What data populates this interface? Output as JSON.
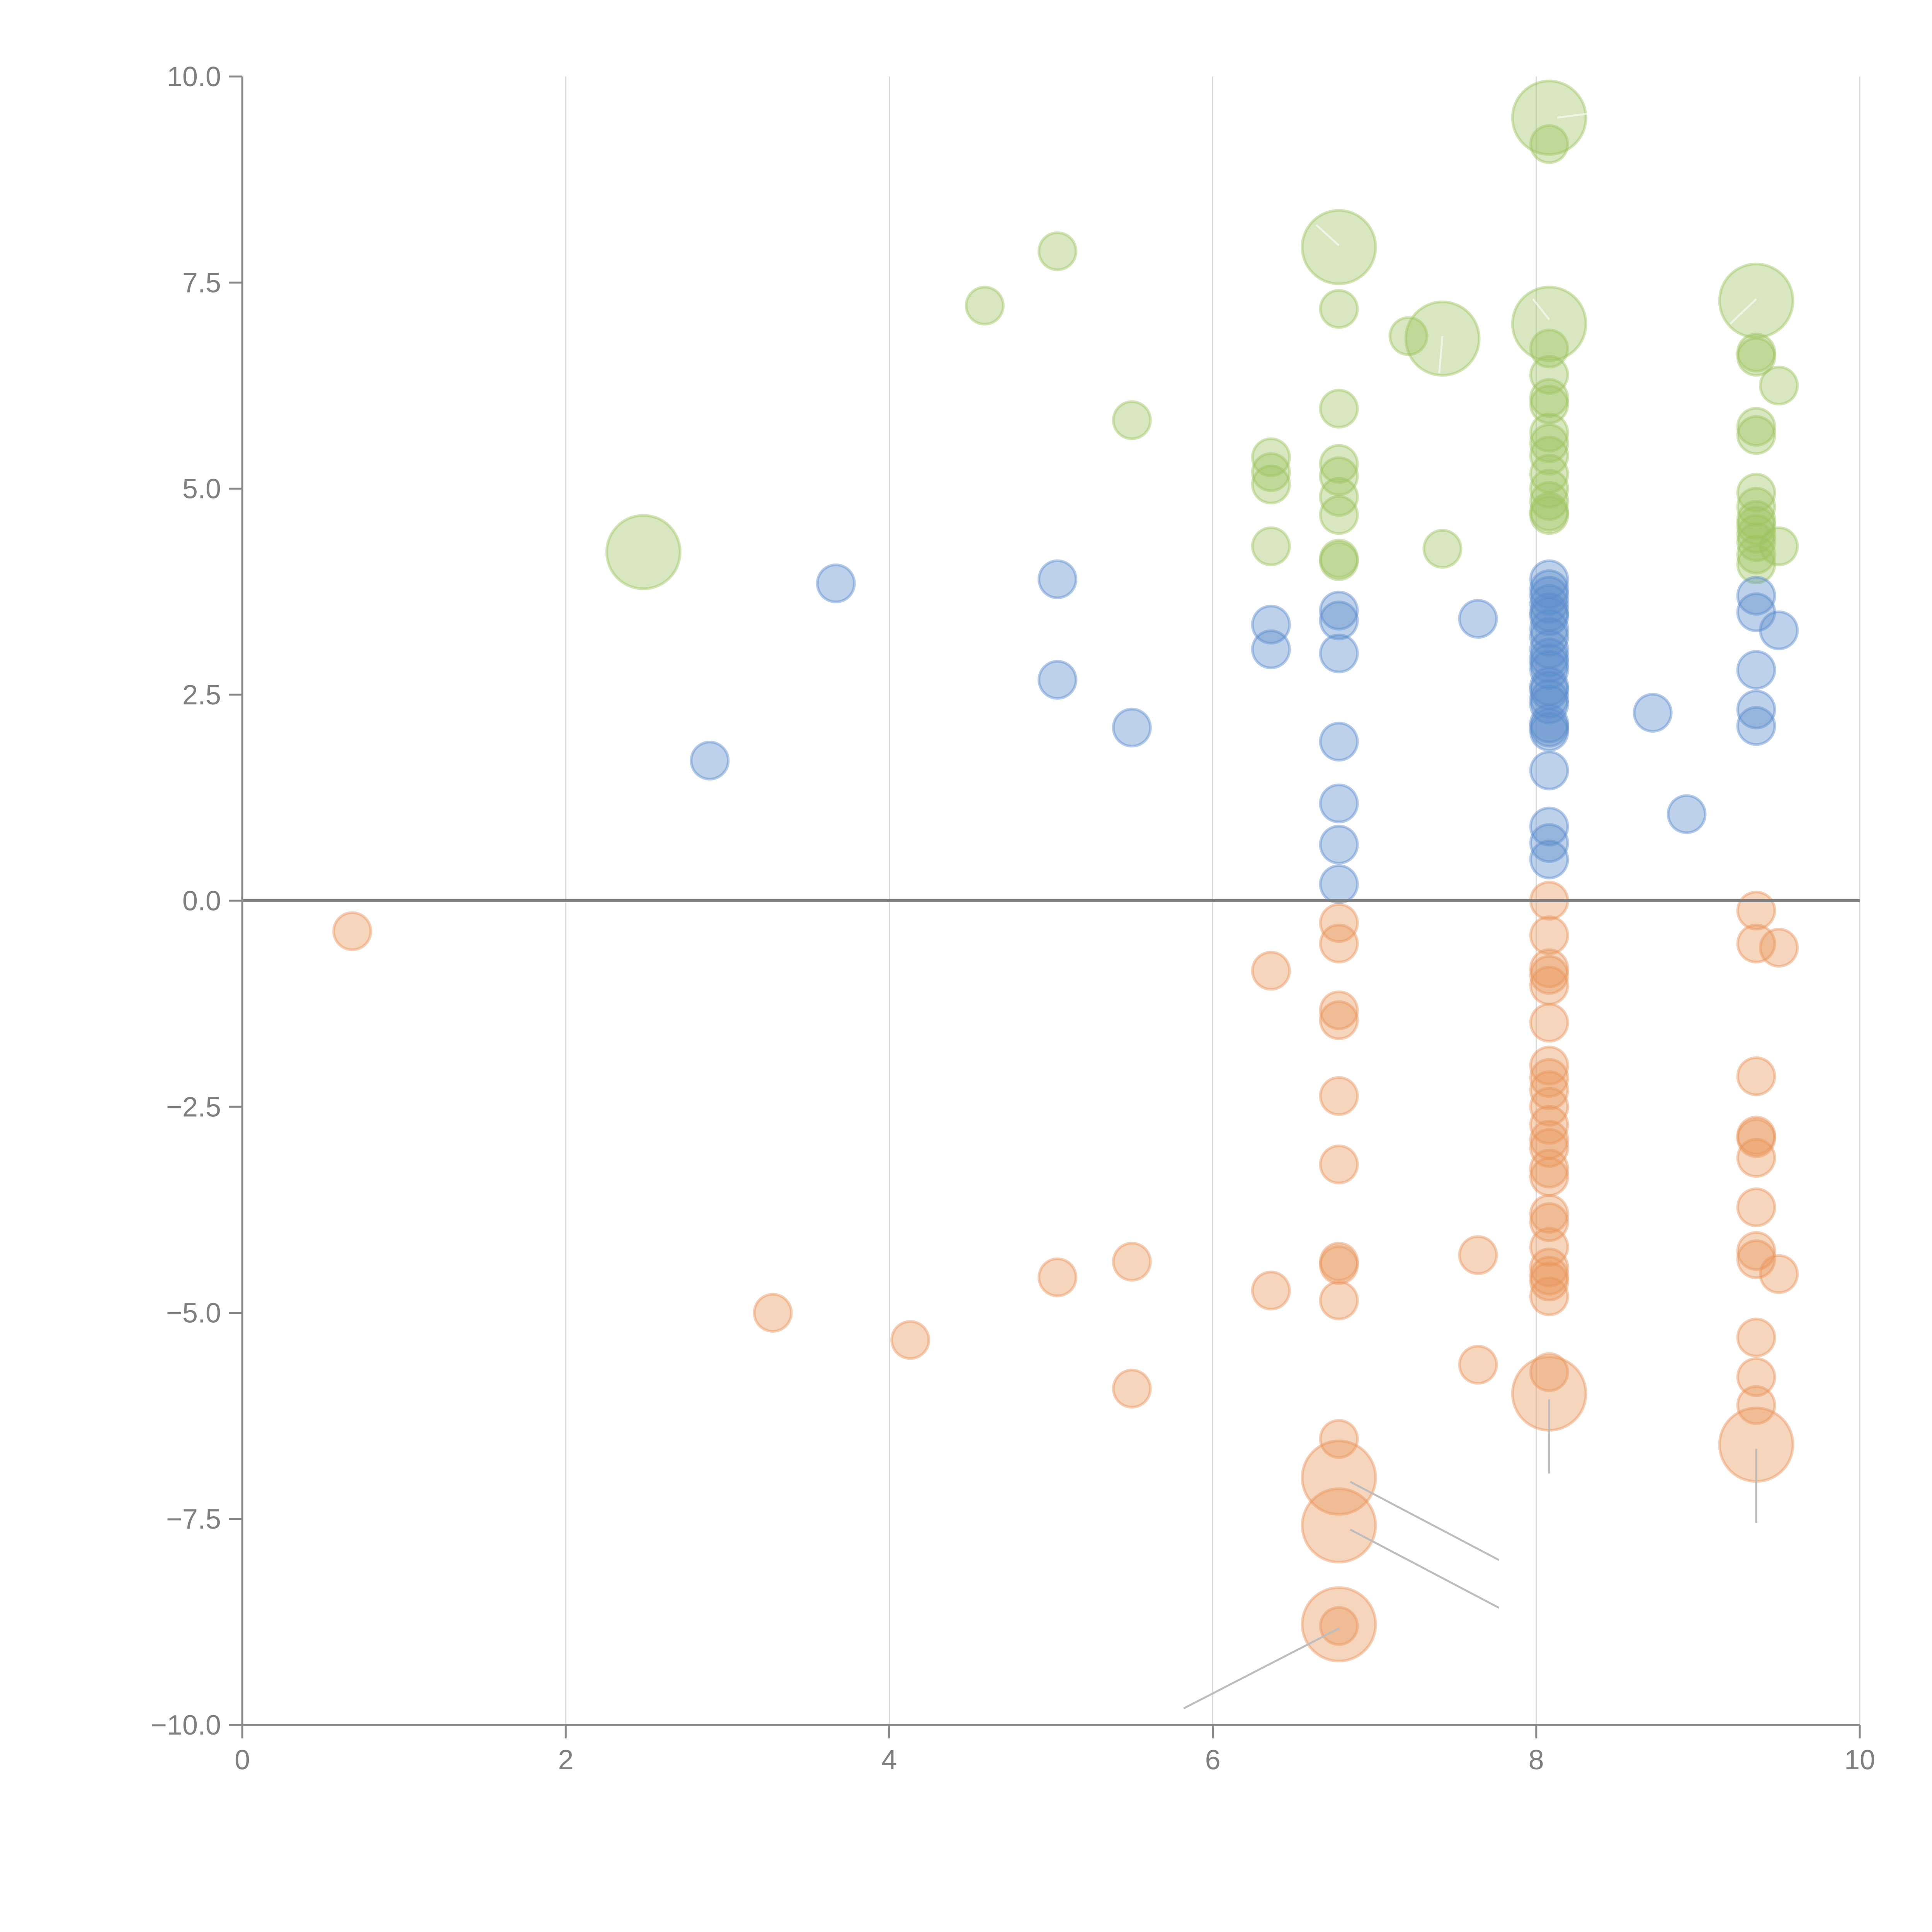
{
  "chart_data": {
    "type": "scatter",
    "title": "",
    "xlabel": "",
    "ylabel": "",
    "xlim": [
      0,
      10
    ],
    "ylim": [
      -10,
      10
    ],
    "grid": "vertical",
    "legend": "none",
    "x_ticks": [
      "0",
      "2",
      "4",
      "6",
      "8",
      "10"
    ],
    "x_tick_values": [
      0,
      2,
      4,
      6,
      8,
      10
    ],
    "y_ticks": [
      "10.0",
      "7.5",
      "5.0",
      "2.5",
      "0.0",
      "−2.5",
      "−5.0",
      "−7.5",
      "−10.0"
    ],
    "y_tick_values": [
      10,
      7.5,
      5,
      2.5,
      0,
      -2.5,
      -5,
      -7.5,
      -10
    ],
    "zero_line": 0,
    "series": [
      {
        "name": "green",
        "color": "#9dc35f",
        "points": [
          {
            "x": 8.08,
            "y": 9.5,
            "size": 3
          },
          {
            "x": 8.08,
            "y": 9.18,
            "size": 1
          },
          {
            "x": 6.78,
            "y": 7.93,
            "size": 3
          },
          {
            "x": 5.04,
            "y": 7.88,
            "size": 1
          },
          {
            "x": 4.59,
            "y": 7.22,
            "size": 1
          },
          {
            "x": 6.78,
            "y": 7.18,
            "size": 1
          },
          {
            "x": 9.36,
            "y": 7.28,
            "size": 3
          },
          {
            "x": 8.08,
            "y": 7.0,
            "size": 3
          },
          {
            "x": 7.21,
            "y": 6.85,
            "size": 1
          },
          {
            "x": 7.42,
            "y": 6.82,
            "size": 3
          },
          {
            "x": 8.08,
            "y": 6.7,
            "size": 1
          },
          {
            "x": 9.36,
            "y": 6.65,
            "size": 1
          },
          {
            "x": 9.36,
            "y": 6.6,
            "size": 1
          },
          {
            "x": 8.08,
            "y": 6.38,
            "size": 1
          },
          {
            "x": 9.5,
            "y": 6.25,
            "size": 1
          },
          {
            "x": 8.08,
            "y": 6.1,
            "size": 1
          },
          {
            "x": 8.08,
            "y": 6.02,
            "size": 1
          },
          {
            "x": 6.78,
            "y": 5.97,
            "size": 1
          },
          {
            "x": 5.5,
            "y": 5.83,
            "size": 1
          },
          {
            "x": 9.36,
            "y": 5.75,
            "size": 1
          },
          {
            "x": 8.08,
            "y": 5.68,
            "size": 1
          },
          {
            "x": 9.36,
            "y": 5.65,
            "size": 1
          },
          {
            "x": 8.08,
            "y": 5.55,
            "size": 1
          },
          {
            "x": 8.08,
            "y": 5.4,
            "size": 1
          },
          {
            "x": 6.36,
            "y": 5.38,
            "size": 1
          },
          {
            "x": 6.78,
            "y": 5.3,
            "size": 1
          },
          {
            "x": 6.36,
            "y": 5.2,
            "size": 1
          },
          {
            "x": 8.08,
            "y": 5.18,
            "size": 1
          },
          {
            "x": 6.78,
            "y": 5.15,
            "size": 1
          },
          {
            "x": 6.36,
            "y": 5.05,
            "size": 1
          },
          {
            "x": 8.08,
            "y": 5.0,
            "size": 1
          },
          {
            "x": 9.36,
            "y": 4.95,
            "size": 1
          },
          {
            "x": 6.78,
            "y": 4.9,
            "size": 1
          },
          {
            "x": 8.08,
            "y": 4.85,
            "size": 1
          },
          {
            "x": 9.36,
            "y": 4.78,
            "size": 1
          },
          {
            "x": 8.08,
            "y": 4.72,
            "size": 1
          },
          {
            "x": 6.78,
            "y": 4.68,
            "size": 1
          },
          {
            "x": 8.08,
            "y": 4.68,
            "size": 1
          },
          {
            "x": 9.36,
            "y": 4.62,
            "size": 1
          },
          {
            "x": 9.36,
            "y": 4.55,
            "size": 1
          },
          {
            "x": 9.36,
            "y": 4.45,
            "size": 1
          },
          {
            "x": 9.36,
            "y": 4.35,
            "size": 1
          },
          {
            "x": 6.36,
            "y": 4.3,
            "size": 1
          },
          {
            "x": 9.5,
            "y": 4.3,
            "size": 1
          },
          {
            "x": 7.42,
            "y": 4.27,
            "size": 1
          },
          {
            "x": 2.48,
            "y": 4.23,
            "size": 3
          },
          {
            "x": 9.36,
            "y": 4.2,
            "size": 1
          },
          {
            "x": 6.78,
            "y": 4.15,
            "size": 1
          },
          {
            "x": 6.78,
            "y": 4.12,
            "size": 1
          },
          {
            "x": 9.36,
            "y": 4.08,
            "size": 1
          }
        ]
      },
      {
        "name": "blue",
        "color": "#5b8ccb",
        "points": [
          {
            "x": 8.08,
            "y": 3.9,
            "size": 1
          },
          {
            "x": 5.04,
            "y": 3.9,
            "size": 1
          },
          {
            "x": 3.67,
            "y": 3.85,
            "size": 1
          },
          {
            "x": 8.08,
            "y": 3.78,
            "size": 1
          },
          {
            "x": 8.08,
            "y": 3.7,
            "size": 1
          },
          {
            "x": 9.36,
            "y": 3.7,
            "size": 1
          },
          {
            "x": 8.08,
            "y": 3.6,
            "size": 1
          },
          {
            "x": 6.78,
            "y": 3.52,
            "size": 1
          },
          {
            "x": 8.08,
            "y": 3.5,
            "size": 1
          },
          {
            "x": 9.36,
            "y": 3.5,
            "size": 1
          },
          {
            "x": 8.08,
            "y": 3.45,
            "size": 1
          },
          {
            "x": 7.64,
            "y": 3.42,
            "size": 1
          },
          {
            "x": 6.78,
            "y": 3.4,
            "size": 1
          },
          {
            "x": 6.36,
            "y": 3.35,
            "size": 1
          },
          {
            "x": 8.08,
            "y": 3.3,
            "size": 1
          },
          {
            "x": 9.5,
            "y": 3.28,
            "size": 1
          },
          {
            "x": 8.08,
            "y": 3.2,
            "size": 1
          },
          {
            "x": 8.08,
            "y": 3.05,
            "size": 1
          },
          {
            "x": 6.36,
            "y": 3.05,
            "size": 1
          },
          {
            "x": 6.78,
            "y": 3.0,
            "size": 1
          },
          {
            "x": 8.08,
            "y": 2.95,
            "size": 1
          },
          {
            "x": 8.08,
            "y": 2.88,
            "size": 1
          },
          {
            "x": 8.08,
            "y": 2.8,
            "size": 1
          },
          {
            "x": 9.36,
            "y": 2.8,
            "size": 1
          },
          {
            "x": 5.04,
            "y": 2.68,
            "size": 1
          },
          {
            "x": 8.08,
            "y": 2.6,
            "size": 1
          },
          {
            "x": 8.08,
            "y": 2.55,
            "size": 1
          },
          {
            "x": 8.08,
            "y": 2.45,
            "size": 1
          },
          {
            "x": 8.08,
            "y": 2.38,
            "size": 1
          },
          {
            "x": 9.36,
            "y": 2.32,
            "size": 1
          },
          {
            "x": 8.72,
            "y": 2.28,
            "size": 1
          },
          {
            "x": 8.08,
            "y": 2.15,
            "size": 1
          },
          {
            "x": 8.08,
            "y": 2.1,
            "size": 1
          },
          {
            "x": 5.5,
            "y": 2.1,
            "size": 1
          },
          {
            "x": 9.36,
            "y": 2.12,
            "size": 1
          },
          {
            "x": 8.08,
            "y": 2.05,
            "size": 1
          },
          {
            "x": 6.78,
            "y": 1.93,
            "size": 1
          },
          {
            "x": 2.89,
            "y": 1.7,
            "size": 1
          },
          {
            "x": 8.08,
            "y": 1.58,
            "size": 1
          },
          {
            "x": 6.78,
            "y": 1.18,
            "size": 1
          },
          {
            "x": 8.93,
            "y": 1.05,
            "size": 1
          },
          {
            "x": 8.08,
            "y": 0.9,
            "size": 1
          },
          {
            "x": 8.08,
            "y": 0.7,
            "size": 1
          },
          {
            "x": 6.78,
            "y": 0.68,
            "size": 1
          },
          {
            "x": 8.08,
            "y": 0.5,
            "size": 1
          },
          {
            "x": 6.78,
            "y": 0.2,
            "size": 1
          }
        ]
      },
      {
        "name": "orange",
        "color": "#e8955a",
        "points": [
          {
            "x": 8.08,
            "y": 0.0,
            "size": 1
          },
          {
            "x": 9.36,
            "y": -0.12,
            "size": 1
          },
          {
            "x": 6.78,
            "y": -0.27,
            "size": 1
          },
          {
            "x": 0.68,
            "y": -0.37,
            "size": 1
          },
          {
            "x": 8.08,
            "y": -0.42,
            "size": 1
          },
          {
            "x": 6.78,
            "y": -0.52,
            "size": 1
          },
          {
            "x": 9.36,
            "y": -0.52,
            "size": 1
          },
          {
            "x": 9.5,
            "y": -0.57,
            "size": 1
          },
          {
            "x": 6.36,
            "y": -0.85,
            "size": 1
          },
          {
            "x": 8.08,
            "y": -0.82,
            "size": 1
          },
          {
            "x": 8.08,
            "y": -0.9,
            "size": 1
          },
          {
            "x": 8.08,
            "y": -1.03,
            "size": 1
          },
          {
            "x": 6.78,
            "y": -1.33,
            "size": 1
          },
          {
            "x": 6.78,
            "y": -1.45,
            "size": 1
          },
          {
            "x": 8.08,
            "y": -1.48,
            "size": 1
          },
          {
            "x": 8.08,
            "y": -2.0,
            "size": 1
          },
          {
            "x": 9.36,
            "y": -2.13,
            "size": 1
          },
          {
            "x": 8.08,
            "y": -2.15,
            "size": 1
          },
          {
            "x": 8.08,
            "y": -2.3,
            "size": 1
          },
          {
            "x": 6.78,
            "y": -2.37,
            "size": 1
          },
          {
            "x": 8.08,
            "y": -2.5,
            "size": 1
          },
          {
            "x": 8.08,
            "y": -2.72,
            "size": 1
          },
          {
            "x": 9.36,
            "y": -2.85,
            "size": 1
          },
          {
            "x": 9.36,
            "y": -2.88,
            "size": 1
          },
          {
            "x": 8.08,
            "y": -2.9,
            "size": 1
          },
          {
            "x": 8.08,
            "y": -3.0,
            "size": 1
          },
          {
            "x": 9.36,
            "y": -3.12,
            "size": 1
          },
          {
            "x": 6.78,
            "y": -3.2,
            "size": 1
          },
          {
            "x": 8.08,
            "y": -3.25,
            "size": 1
          },
          {
            "x": 8.08,
            "y": -3.35,
            "size": 1
          },
          {
            "x": 9.36,
            "y": -3.72,
            "size": 1
          },
          {
            "x": 8.08,
            "y": -3.8,
            "size": 1
          },
          {
            "x": 8.08,
            "y": -3.9,
            "size": 1
          },
          {
            "x": 8.08,
            "y": -4.2,
            "size": 1
          },
          {
            "x": 9.36,
            "y": -4.25,
            "size": 1
          },
          {
            "x": 7.64,
            "y": -4.3,
            "size": 1
          },
          {
            "x": 9.36,
            "y": -4.35,
            "size": 1
          },
          {
            "x": 6.78,
            "y": -4.38,
            "size": 1
          },
          {
            "x": 5.5,
            "y": -4.38,
            "size": 1
          },
          {
            "x": 6.78,
            "y": -4.42,
            "size": 1
          },
          {
            "x": 8.08,
            "y": -4.45,
            "size": 1
          },
          {
            "x": 8.08,
            "y": -4.55,
            "size": 1
          },
          {
            "x": 5.04,
            "y": -4.57,
            "size": 1
          },
          {
            "x": 9.5,
            "y": -4.53,
            "size": 1
          },
          {
            "x": 8.08,
            "y": -4.62,
            "size": 1
          },
          {
            "x": 6.36,
            "y": -4.73,
            "size": 1
          },
          {
            "x": 8.08,
            "y": -4.8,
            "size": 1
          },
          {
            "x": 6.78,
            "y": -4.85,
            "size": 1
          },
          {
            "x": 3.28,
            "y": -5.0,
            "size": 1
          },
          {
            "x": 4.13,
            "y": -5.33,
            "size": 1
          },
          {
            "x": 9.36,
            "y": -5.3,
            "size": 1
          },
          {
            "x": 7.64,
            "y": -5.63,
            "size": 1
          },
          {
            "x": 8.08,
            "y": -5.72,
            "size": 1
          },
          {
            "x": 9.36,
            "y": -5.78,
            "size": 1
          },
          {
            "x": 5.5,
            "y": -5.92,
            "size": 1
          },
          {
            "x": 8.08,
            "y": -5.98,
            "size": 3
          },
          {
            "x": 9.36,
            "y": -6.12,
            "size": 1
          },
          {
            "x": 6.78,
            "y": -6.53,
            "size": 1
          },
          {
            "x": 9.36,
            "y": -6.6,
            "size": 3
          },
          {
            "x": 6.78,
            "y": -7.0,
            "size": 3
          },
          {
            "x": 6.78,
            "y": -7.58,
            "size": 3
          },
          {
            "x": 6.78,
            "y": -8.78,
            "size": 3
          },
          {
            "x": 6.78,
            "y": -8.8,
            "size": 1
          }
        ]
      }
    ],
    "leader_lines": [
      {
        "from": [
          8.08,
          -6.05
        ],
        "to": [
          8.08,
          -6.95
        ],
        "color": "grey"
      },
      {
        "from": [
          9.36,
          -6.65
        ],
        "to": [
          9.36,
          -7.55
        ],
        "color": "grey"
      },
      {
        "from": [
          6.85,
          -7.05
        ],
        "to": [
          7.77,
          -8.0
        ],
        "color": "grey"
      },
      {
        "from": [
          6.85,
          -7.63
        ],
        "to": [
          7.77,
          -8.58
        ],
        "color": "grey"
      },
      {
        "from": [
          6.78,
          -8.83
        ],
        "to": [
          5.82,
          -9.8
        ],
        "color": "grey"
      },
      {
        "from": [
          8.13,
          9.5
        ],
        "to": [
          8.32,
          9.55
        ],
        "color": "white"
      },
      {
        "from": [
          6.78,
          7.95
        ],
        "to": [
          6.64,
          8.2
        ],
        "color": "white"
      },
      {
        "from": [
          9.36,
          7.3
        ],
        "to": [
          9.2,
          7.0
        ],
        "color": "white"
      },
      {
        "from": [
          8.08,
          7.05
        ],
        "to": [
          7.98,
          7.3
        ],
        "color": "white"
      },
      {
        "from": [
          7.42,
          6.85
        ],
        "to": [
          7.4,
          6.4
        ],
        "color": "white"
      }
    ]
  }
}
